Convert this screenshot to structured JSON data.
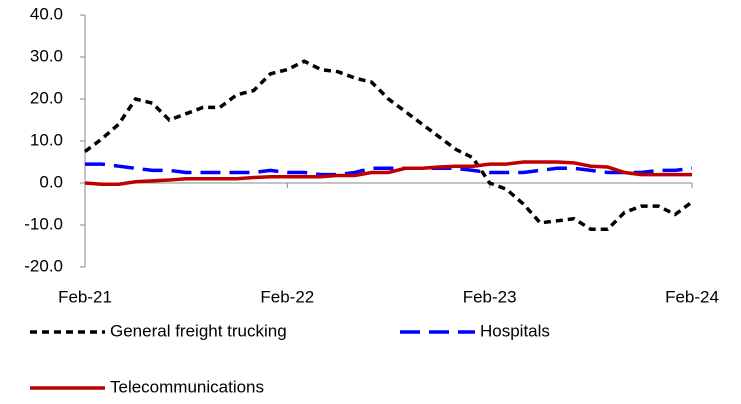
{
  "chart_data": {
    "type": "line",
    "categories": [
      "Feb-21",
      null,
      null,
      null,
      null,
      null,
      null,
      null,
      null,
      null,
      null,
      null,
      "Feb-22",
      null,
      null,
      null,
      null,
      null,
      null,
      null,
      null,
      null,
      null,
      null,
      "Feb-23",
      null,
      null,
      null,
      null,
      null,
      null,
      null,
      null,
      null,
      null,
      null,
      "Feb-24"
    ],
    "series": [
      {
        "name": "General freight trucking",
        "color": "#000000",
        "dash": "dotted",
        "values": [
          7.5,
          10.5,
          14,
          20,
          19,
          15,
          16.5,
          18,
          18,
          21,
          22,
          26,
          27,
          29,
          27,
          26.5,
          25,
          24,
          20,
          17,
          14,
          11,
          8,
          6,
          0,
          -1.5,
          -5,
          -9.5,
          -9,
          -8.5,
          -11,
          -11,
          -7,
          -5.5,
          -5.5,
          -7.5,
          -4.5
        ]
      },
      {
        "name": "Hospitals",
        "color": "#0000ff",
        "dash": "dashed",
        "values": [
          4.5,
          4.5,
          4,
          3.5,
          3,
          3,
          2.5,
          2.5,
          2.5,
          2.5,
          2.5,
          3,
          2.5,
          2.5,
          2,
          2,
          2.5,
          3.5,
          3.5,
          3.5,
          3.5,
          3.5,
          3.5,
          3,
          2.5,
          2.5,
          2.5,
          3,
          3.5,
          3.5,
          3,
          2.5,
          2.5,
          2.5,
          3,
          3,
          3.5
        ]
      },
      {
        "name": "Telecommunications",
        "color": "#c00000",
        "dash": "solid",
        "values": [
          0,
          -0.3,
          -0.3,
          0.3,
          0.5,
          0.7,
          1,
          1,
          1,
          1,
          1.3,
          1.5,
          1.5,
          1.5,
          1.5,
          1.8,
          1.8,
          2.5,
          2.5,
          3.5,
          3.5,
          3.8,
          4,
          4,
          4.5,
          4.5,
          5,
          5,
          5,
          4.8,
          4,
          3.8,
          2.5,
          2,
          2,
          2,
          2
        ]
      }
    ],
    "ylim": [
      -20,
      40
    ],
    "yticks": [
      {
        "value": -20,
        "label": "-20.0"
      },
      {
        "value": -10,
        "label": "-10.0"
      },
      {
        "value": 0,
        "label": "0.0"
      },
      {
        "value": 10,
        "label": "10.0"
      },
      {
        "value": 20,
        "label": "20.0"
      },
      {
        "value": 30,
        "label": "30.0"
      },
      {
        "value": 40,
        "label": "40.0"
      }
    ],
    "grid": false
  }
}
